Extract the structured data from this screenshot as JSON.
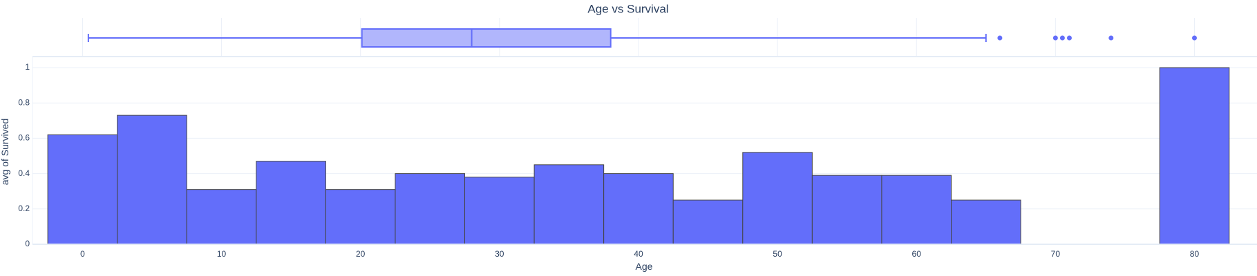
{
  "chart_data": {
    "type": "histogram",
    "title": "Age vs Survival",
    "xlabel": "Age",
    "ylabel": "avg of Survived",
    "xlim": [
      -3.6,
      84.5
    ],
    "ylim": [
      0,
      1
    ],
    "x_ticks": [
      0,
      10,
      20,
      30,
      40,
      50,
      60,
      70,
      80
    ],
    "y_ticks": [
      0,
      0.2,
      0.4,
      0.6,
      0.8,
      1
    ],
    "y_tick_labels": [
      "0",
      "0.2",
      "0.4",
      "0.6",
      "0.8",
      "1"
    ],
    "bin_width": 5,
    "bins": [
      {
        "start": -2.5,
        "end": 2.5,
        "value": 0.62
      },
      {
        "start": 2.5,
        "end": 7.5,
        "value": 0.73
      },
      {
        "start": 7.5,
        "end": 12.5,
        "value": 0.31
      },
      {
        "start": 12.5,
        "end": 17.5,
        "value": 0.47
      },
      {
        "start": 17.5,
        "end": 22.5,
        "value": 0.31
      },
      {
        "start": 22.5,
        "end": 27.5,
        "value": 0.4
      },
      {
        "start": 27.5,
        "end": 32.5,
        "value": 0.38
      },
      {
        "start": 32.5,
        "end": 37.5,
        "value": 0.45
      },
      {
        "start": 37.5,
        "end": 42.5,
        "value": 0.4
      },
      {
        "start": 42.5,
        "end": 47.5,
        "value": 0.25
      },
      {
        "start": 47.5,
        "end": 52.5,
        "value": 0.52
      },
      {
        "start": 52.5,
        "end": 57.5,
        "value": 0.39
      },
      {
        "start": 57.5,
        "end": 62.5,
        "value": 0.39
      },
      {
        "start": 62.5,
        "end": 67.5,
        "value": 0.25
      },
      {
        "start": 77.5,
        "end": 82.5,
        "value": 1.0
      }
    ],
    "boxplot": {
      "min": 0.42,
      "q1": 20.1,
      "median": 28,
      "q3": 38,
      "max": 65,
      "outliers": [
        66,
        70,
        70.5,
        71,
        74,
        80
      ]
    },
    "colors": {
      "bar_fill": "#636efa",
      "bar_edge": "#444444",
      "box_fill": "#b1b6fc",
      "box_line": "#636efa",
      "grid": "#ebf0f8",
      "zeroline": "#e5ecf6",
      "text": "#2a3f5f"
    }
  }
}
